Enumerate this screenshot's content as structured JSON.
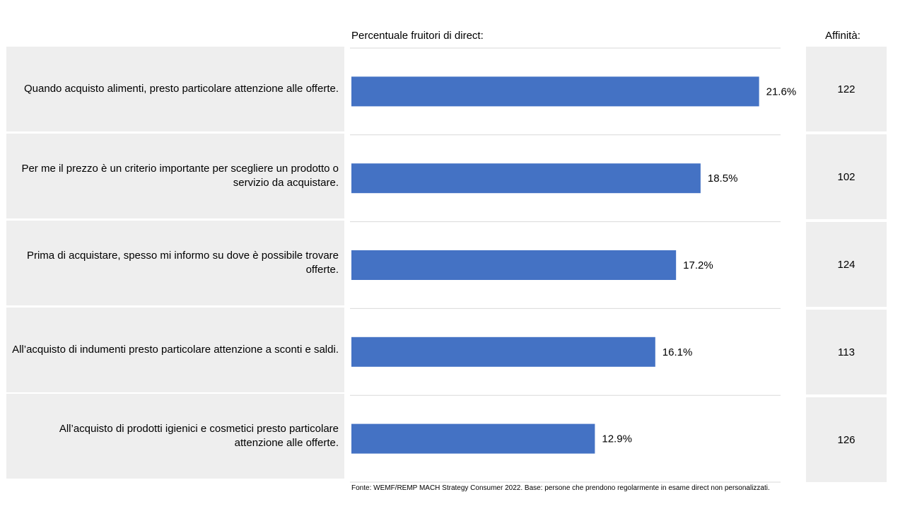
{
  "header": {
    "chart_title": "Percentuale fruitori di direct:",
    "affinity_title": "Affinità:"
  },
  "colors": {
    "bar": "#4472C4",
    "cell_bg": "#eeeeee",
    "divider": "#d9d9d9"
  },
  "chart_data": {
    "type": "bar",
    "orientation": "horizontal",
    "title": "Percentuale fruitori di direct:",
    "categories": [
      "Quando acquisto alimenti, presto particolare attenzione alle offerte.",
      "Per me il prezzo  è un criterio importante per scegliere un prodotto o servizio da acquistare.",
      "Prima di acquistare, spesso mi informo su dove è possibile trovare offerte.",
      "All’acquisto di indumenti presto particolare attenzione a sconti e saldi.",
      "All’acquisto di prodotti igienici e cosmetici presto particolare attenzione alle offerte."
    ],
    "values": [
      21.6,
      18.5,
      17.2,
      16.1,
      12.9
    ],
    "value_labels": [
      "21.6%",
      "18.5%",
      "17.2%",
      "16.1%",
      "12.9%"
    ],
    "xlim": [
      0,
      22.7
    ],
    "grid": "horizontal row dividers",
    "affinity": {
      "title": "Affinità:",
      "values": [
        "122",
        "102",
        "124",
        "113",
        "126"
      ]
    }
  },
  "footer": {
    "source": "Fonte: WEMF/REMP  MACH Strategy Consumer 2022. Base: persone che prendono regolarmente in esame direct non personalizzati."
  }
}
